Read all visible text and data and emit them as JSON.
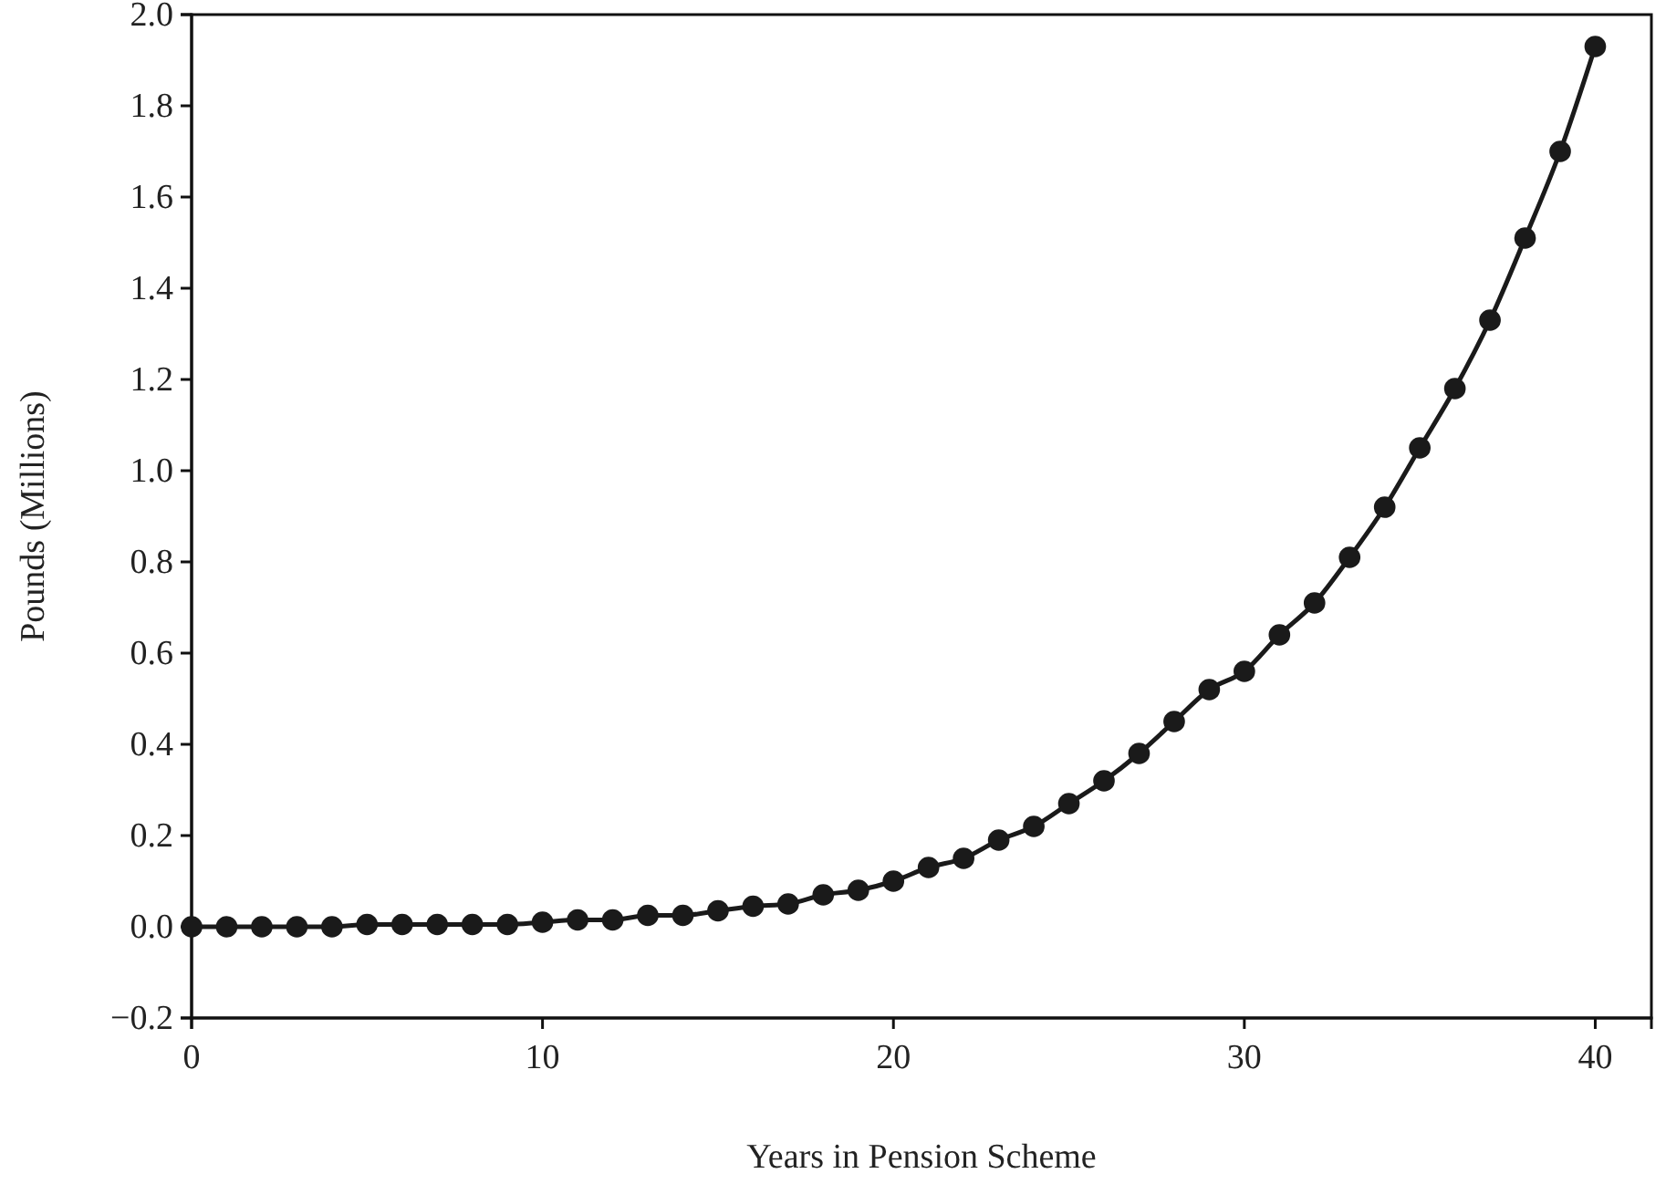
{
  "chart_data": {
    "type": "line",
    "xlabel": "Years in Pension Scheme",
    "ylabel": "Pounds (Millions)",
    "x": [
      0,
      1,
      2,
      3,
      4,
      5,
      6,
      7,
      8,
      9,
      10,
      11,
      12,
      13,
      14,
      15,
      16,
      17,
      18,
      19,
      20,
      21,
      22,
      23,
      24,
      25,
      26,
      27,
      28,
      29,
      30,
      31,
      32,
      33,
      34,
      35,
      36,
      37,
      38,
      39,
      40
    ],
    "series": [
      {
        "color": "#1a1a1a",
        "values": [
          0,
          0,
          0,
          0,
          0,
          0.005,
          0.005,
          0.005,
          0.005,
          0.005,
          0.01,
          0.015,
          0.015,
          0.025,
          0.025,
          0.035,
          0.045,
          0.05,
          0.07,
          0.08,
          0.1,
          0.13,
          0.15,
          0.19,
          0.22,
          0.27,
          0.32,
          0.38,
          0.45,
          0.52,
          0.56,
          0.64,
          0.71,
          0.81,
          0.92,
          1.05,
          1.18,
          1.33,
          1.51,
          1.7,
          1.93
        ]
      }
    ],
    "xlim": [
      0,
      41.6
    ],
    "xticks": [
      0,
      10,
      20,
      30,
      40
    ],
    "ylim": [
      -0.2,
      2.0
    ],
    "yticks": [
      {
        "value": -0.2,
        "label": "−0.2"
      },
      {
        "value": 0,
        "label": "0.0"
      },
      {
        "value": 0.2,
        "label": "0.2"
      },
      {
        "value": 0.4,
        "label": "0.4"
      },
      {
        "value": 0.6,
        "label": "0.6"
      },
      {
        "value": 0.8,
        "label": "0.8"
      },
      {
        "value": 1.0,
        "label": "1.0"
      },
      {
        "value": 1.2,
        "label": "1.2"
      },
      {
        "value": 1.4,
        "label": "1.4"
      },
      {
        "value": 1.6,
        "label": "1.6"
      },
      {
        "value": 1.8,
        "label": "1.8"
      },
      {
        "value": 2.0,
        "label": "2.0"
      }
    ],
    "marker": "circle",
    "line_style": "solid",
    "grid": false
  }
}
